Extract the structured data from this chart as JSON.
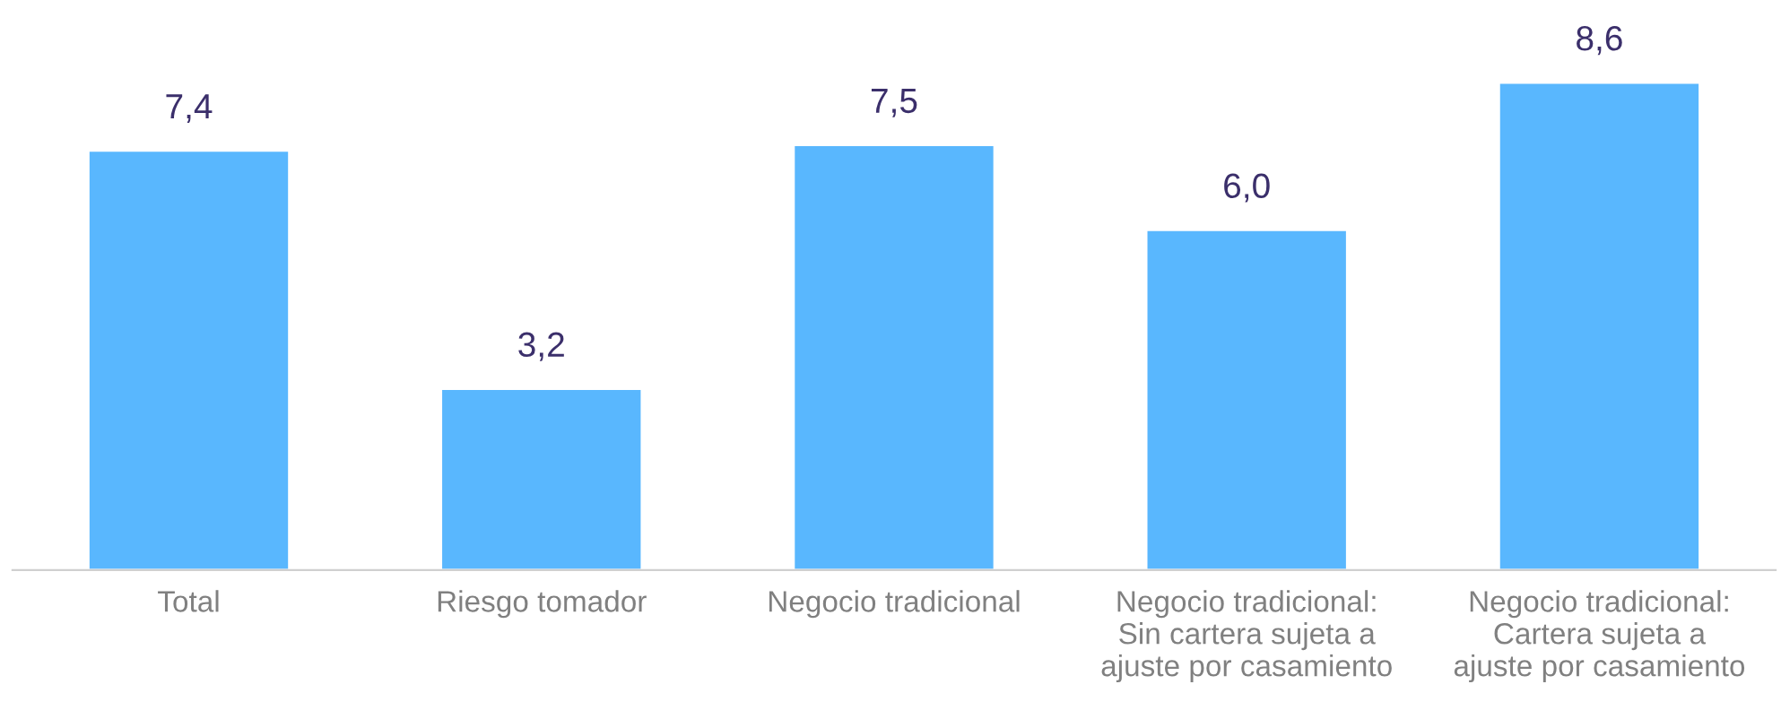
{
  "chart_data": {
    "type": "bar",
    "categories": [
      "Total",
      "Riesgo tomador",
      "Negocio tradicional",
      "Negocio tradicional:\nSin cartera sujeta a\najuste por casamiento",
      "Negocio tradicional:\nCartera sujeta a\najuste por casamiento"
    ],
    "values": [
      7.4,
      3.2,
      7.5,
      6.0,
      8.6
    ],
    "value_labels": [
      "7,4",
      "3,2",
      "7,5",
      "6,0",
      "8,6"
    ],
    "color": "#59b7fe",
    "grid": false,
    "legend": false
  }
}
